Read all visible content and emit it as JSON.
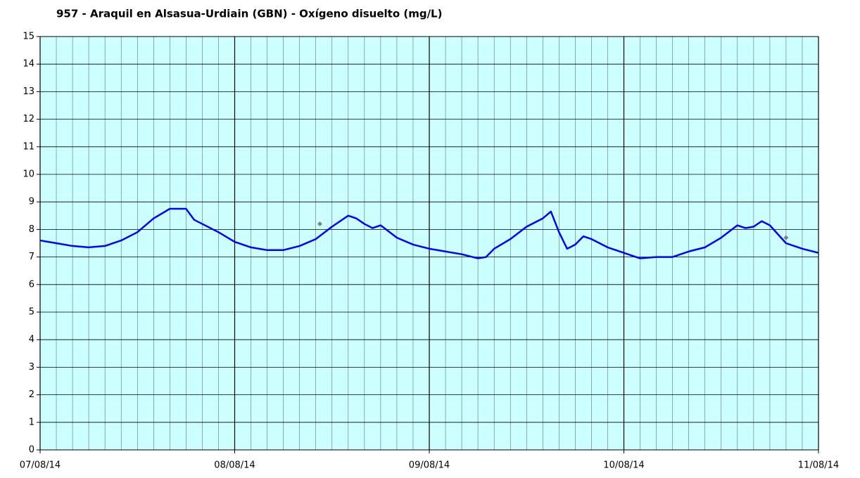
{
  "chart_data": {
    "type": "line",
    "title": "957 - Araquil en Alsasua-Urdiain (GBN) - Oxígeno disuelto (mg/L)",
    "xlim": [
      0,
      96
    ],
    "xticks": [
      {
        "value": 0,
        "label": "07/08/14"
      },
      {
        "value": 24,
        "label": "08/08/14"
      },
      {
        "value": 48,
        "label": "09/08/14"
      },
      {
        "value": 72,
        "label": "10/08/14"
      },
      {
        "value": 96,
        "label": "11/08/14"
      }
    ],
    "ylim": [
      0,
      15
    ],
    "yticks": [
      0,
      1,
      2,
      3,
      4,
      5,
      6,
      7,
      8,
      9,
      10,
      11,
      12,
      13,
      14,
      15
    ],
    "grid": true,
    "background": "#ccffff",
    "series": [
      {
        "color": "#0000ff",
        "marker": "none",
        "x": [
          0,
          2,
          4,
          6,
          8,
          10,
          12,
          14,
          16,
          18,
          19,
          20,
          22,
          24,
          26,
          28,
          30,
          32,
          34,
          36,
          38,
          39,
          40,
          41,
          42,
          44,
          46,
          48,
          50,
          52,
          54,
          55,
          56,
          58,
          60,
          62,
          63,
          64,
          65,
          66,
          67,
          68,
          70,
          72,
          73,
          74,
          76,
          78,
          80,
          82,
          84,
          86,
          87,
          88,
          89,
          90,
          92,
          94,
          96
        ],
        "values": [
          7.6,
          7.5,
          7.4,
          7.35,
          7.4,
          7.6,
          7.9,
          8.4,
          8.75,
          8.75,
          8.35,
          8.2,
          7.9,
          7.55,
          7.35,
          7.25,
          7.25,
          7.4,
          7.65,
          8.1,
          8.5,
          8.4,
          8.2,
          8.05,
          8.15,
          7.7,
          7.45,
          7.3,
          7.2,
          7.1,
          6.95,
          7.0,
          7.3,
          7.65,
          8.1,
          8.4,
          8.65,
          7.9,
          7.3,
          7.45,
          7.75,
          7.65,
          7.35,
          7.15,
          7.05,
          6.95,
          7.0,
          7.0,
          7.2,
          7.35,
          7.7,
          8.15,
          8.05,
          8.1,
          8.3,
          8.15,
          7.5,
          7.3,
          7.15
        ]
      },
      {
        "color": "#808080",
        "marker": "diamond",
        "x": [
          34.5,
          92
        ],
        "values": [
          8.2,
          7.7
        ]
      }
    ]
  }
}
